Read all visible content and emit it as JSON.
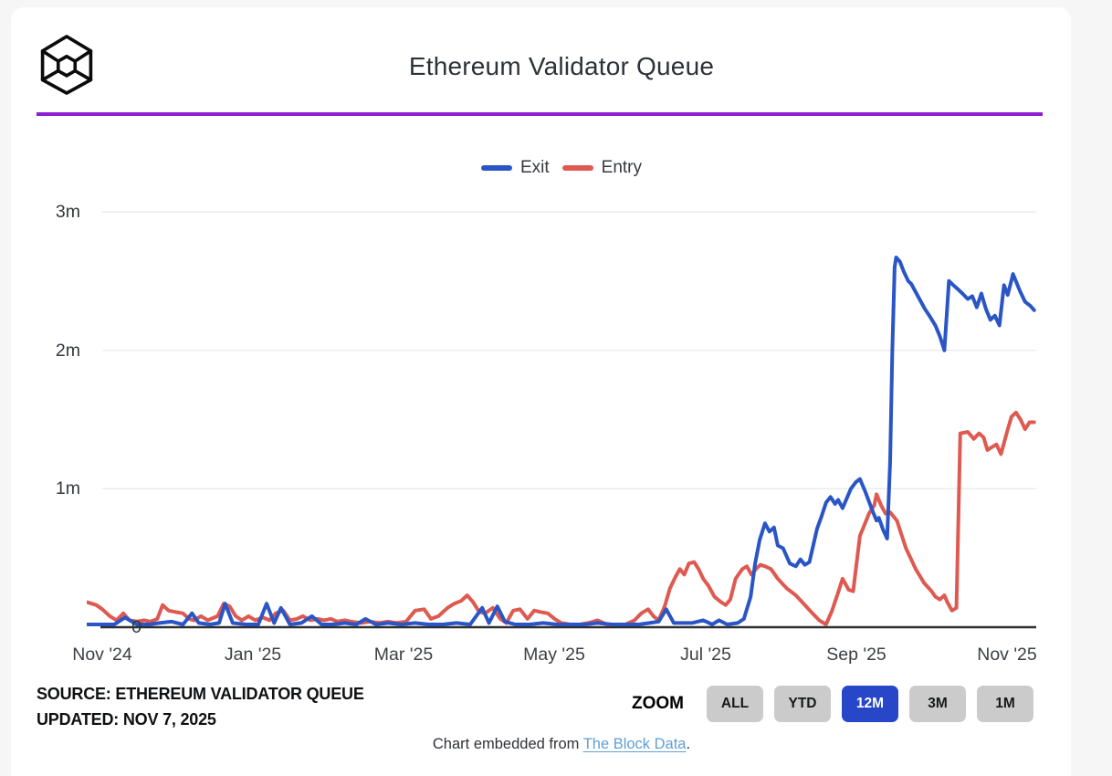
{
  "page": {
    "background": "#f6f6f7",
    "card_background": "#ffffff",
    "divider_color": "#8b1fd1"
  },
  "header": {
    "title": "Ethereum Validator Queue",
    "logo": "the-block-cube-logo"
  },
  "legend": [
    {
      "label": "Exit",
      "color": "#2a55c5"
    },
    {
      "label": "Entry",
      "color": "#de5a51"
    }
  ],
  "chart_data": {
    "type": "line",
    "title": "Ethereum Validator Queue",
    "x_unit": "months since Nov 1, 2024 (range shown: 12M, Nov '24 - Nov 7 '25)",
    "y_unit": "queue size (m = millions)",
    "ylim": [
      0,
      3.1
    ],
    "grid": "horizontal",
    "legend_position": "top-center",
    "x_ticks": [
      {
        "m": 0,
        "label": "Nov '24"
      },
      {
        "m": 2,
        "label": "Jan '25"
      },
      {
        "m": 4,
        "label": "Mar '25"
      },
      {
        "m": 6,
        "label": "May '25"
      },
      {
        "m": 8,
        "label": "Jul '25"
      },
      {
        "m": 10,
        "label": "Sep '25"
      },
      {
        "m": 12,
        "label": "Nov '25"
      }
    ],
    "y_ticks": [
      {
        "v": 0,
        "label": "0"
      },
      {
        "v": 1,
        "label": "1m"
      },
      {
        "v": 2,
        "label": "2m"
      },
      {
        "v": 3,
        "label": "3m"
      }
    ],
    "series": [
      {
        "name": "Exit",
        "color": "#2a55c5",
        "points": [
          [
            -0.2,
            0.02
          ],
          [
            0,
            0.02
          ],
          [
            0.16,
            0.02
          ],
          [
            0.3,
            0.07
          ],
          [
            0.46,
            0.02
          ],
          [
            0.62,
            0.02
          ],
          [
            0.76,
            0.03
          ],
          [
            0.92,
            0.04
          ],
          [
            1.07,
            0.02
          ],
          [
            1.19,
            0.1
          ],
          [
            1.28,
            0.03
          ],
          [
            1.43,
            0.02
          ],
          [
            1.55,
            0.03
          ],
          [
            1.63,
            0.17
          ],
          [
            1.73,
            0.03
          ],
          [
            1.91,
            0.02
          ],
          [
            2.07,
            0.02
          ],
          [
            2.18,
            0.17
          ],
          [
            2.28,
            0.03
          ],
          [
            2.37,
            0.14
          ],
          [
            2.49,
            0.02
          ],
          [
            2.64,
            0.03
          ],
          [
            2.78,
            0.08
          ],
          [
            2.91,
            0.02
          ],
          [
            3.06,
            0.02
          ],
          [
            3.22,
            0.03
          ],
          [
            3.37,
            0.02
          ],
          [
            3.49,
            0.06
          ],
          [
            3.63,
            0.02
          ],
          [
            3.79,
            0.03
          ],
          [
            3.97,
            0.02
          ],
          [
            4.15,
            0.03
          ],
          [
            4.33,
            0.02
          ],
          [
            4.52,
            0.02
          ],
          [
            4.7,
            0.03
          ],
          [
            4.88,
            0.02
          ],
          [
            5.04,
            0.14
          ],
          [
            5.13,
            0.03
          ],
          [
            5.24,
            0.15
          ],
          [
            5.34,
            0.04
          ],
          [
            5.48,
            0.02
          ],
          [
            5.67,
            0.02
          ],
          [
            5.85,
            0.03
          ],
          [
            6.03,
            0.02
          ],
          [
            6.21,
            0.02
          ],
          [
            6.39,
            0.02
          ],
          [
            6.57,
            0.03
          ],
          [
            6.76,
            0.02
          ],
          [
            6.94,
            0.02
          ],
          [
            7.12,
            0.02
          ],
          [
            7.26,
            0.03
          ],
          [
            7.38,
            0.04
          ],
          [
            7.48,
            0.13
          ],
          [
            7.58,
            0.03
          ],
          [
            7.7,
            0.03
          ],
          [
            7.82,
            0.03
          ],
          [
            7.97,
            0.05
          ],
          [
            8.09,
            0.02
          ],
          [
            8.18,
            0.05
          ],
          [
            8.29,
            0.02
          ],
          [
            8.43,
            0.03
          ],
          [
            8.51,
            0.06
          ],
          [
            8.6,
            0.22
          ],
          [
            8.66,
            0.46
          ],
          [
            8.72,
            0.63
          ],
          [
            8.79,
            0.75
          ],
          [
            8.85,
            0.69
          ],
          [
            8.91,
            0.72
          ],
          [
            8.96,
            0.59
          ],
          [
            9.03,
            0.57
          ],
          [
            9.12,
            0.46
          ],
          [
            9.2,
            0.44
          ],
          [
            9.26,
            0.49
          ],
          [
            9.32,
            0.45
          ],
          [
            9.38,
            0.47
          ],
          [
            9.48,
            0.71
          ],
          [
            9.54,
            0.8
          ],
          [
            9.6,
            0.9
          ],
          [
            9.66,
            0.94
          ],
          [
            9.72,
            0.89
          ],
          [
            9.76,
            0.92
          ],
          [
            9.82,
            0.86
          ],
          [
            9.93,
            1.0
          ],
          [
            10.0,
            1.05
          ],
          [
            10.05,
            1.07
          ],
          [
            10.12,
            0.98
          ],
          [
            10.21,
            0.85
          ],
          [
            10.27,
            0.77
          ],
          [
            10.3,
            0.79
          ],
          [
            10.36,
            0.7
          ],
          [
            10.41,
            0.64
          ],
          [
            10.45,
            1.2
          ],
          [
            10.48,
            2.0
          ],
          [
            10.51,
            2.6
          ],
          [
            10.53,
            2.67
          ],
          [
            10.58,
            2.64
          ],
          [
            10.63,
            2.57
          ],
          [
            10.69,
            2.5
          ],
          [
            10.73,
            2.48
          ],
          [
            10.79,
            2.42
          ],
          [
            10.85,
            2.36
          ],
          [
            10.91,
            2.3
          ],
          [
            10.97,
            2.25
          ],
          [
            11.05,
            2.18
          ],
          [
            11.11,
            2.1
          ],
          [
            11.17,
            2.0
          ],
          [
            11.23,
            2.5
          ],
          [
            11.29,
            2.47
          ],
          [
            11.35,
            2.44
          ],
          [
            11.41,
            2.41
          ],
          [
            11.48,
            2.37
          ],
          [
            11.54,
            2.39
          ],
          [
            11.6,
            2.31
          ],
          [
            11.66,
            2.41
          ],
          [
            11.72,
            2.3
          ],
          [
            11.78,
            2.22
          ],
          [
            11.84,
            2.25
          ],
          [
            11.9,
            2.18
          ],
          [
            11.96,
            2.47
          ],
          [
            12.01,
            2.4
          ],
          [
            12.08,
            2.55
          ],
          [
            12.17,
            2.43
          ],
          [
            12.24,
            2.35
          ],
          [
            12.31,
            2.32
          ],
          [
            12.36,
            2.29
          ]
        ]
      },
      {
        "name": "Entry",
        "color": "#de5a51",
        "points": [
          [
            -0.2,
            0.18
          ],
          [
            -0.08,
            0.16
          ],
          [
            0,
            0.13
          ],
          [
            0.1,
            0.08
          ],
          [
            0.19,
            0.05
          ],
          [
            0.28,
            0.1
          ],
          [
            0.36,
            0.05
          ],
          [
            0.46,
            0.04
          ],
          [
            0.56,
            0.05
          ],
          [
            0.64,
            0.04
          ],
          [
            0.73,
            0.06
          ],
          [
            0.8,
            0.16
          ],
          [
            0.88,
            0.12
          ],
          [
            0.97,
            0.11
          ],
          [
            1.07,
            0.1
          ],
          [
            1.15,
            0.06
          ],
          [
            1.22,
            0.05
          ],
          [
            1.31,
            0.08
          ],
          [
            1.4,
            0.05
          ],
          [
            1.53,
            0.08
          ],
          [
            1.61,
            0.17
          ],
          [
            1.69,
            0.15
          ],
          [
            1.77,
            0.08
          ],
          [
            1.85,
            0.05
          ],
          [
            1.94,
            0.08
          ],
          [
            2.03,
            0.05
          ],
          [
            2.13,
            0.07
          ],
          [
            2.22,
            0.05
          ],
          [
            2.3,
            0.1
          ],
          [
            2.4,
            0.12
          ],
          [
            2.49,
            0.05
          ],
          [
            2.58,
            0.06
          ],
          [
            2.66,
            0.08
          ],
          [
            2.76,
            0.05
          ],
          [
            2.86,
            0.06
          ],
          [
            2.94,
            0.05
          ],
          [
            3.03,
            0.06
          ],
          [
            3.12,
            0.04
          ],
          [
            3.22,
            0.05
          ],
          [
            3.3,
            0.04
          ],
          [
            3.43,
            0.03
          ],
          [
            3.55,
            0.04
          ],
          [
            3.67,
            0.03
          ],
          [
            3.79,
            0.04
          ],
          [
            3.91,
            0.03
          ],
          [
            4.03,
            0.04
          ],
          [
            4.15,
            0.12
          ],
          [
            4.27,
            0.13
          ],
          [
            4.36,
            0.06
          ],
          [
            4.46,
            0.08
          ],
          [
            4.58,
            0.14
          ],
          [
            4.67,
            0.17
          ],
          [
            4.76,
            0.19
          ],
          [
            4.84,
            0.23
          ],
          [
            4.92,
            0.18
          ],
          [
            5.0,
            0.11
          ],
          [
            5.08,
            0.1
          ],
          [
            5.18,
            0.14
          ],
          [
            5.28,
            0.06
          ],
          [
            5.36,
            0.03
          ],
          [
            5.45,
            0.12
          ],
          [
            5.54,
            0.13
          ],
          [
            5.64,
            0.06
          ],
          [
            5.73,
            0.12
          ],
          [
            5.81,
            0.11
          ],
          [
            5.91,
            0.1
          ],
          [
            6.0,
            0.06
          ],
          [
            6.09,
            0.03
          ],
          [
            6.21,
            0.02
          ],
          [
            6.33,
            0.02
          ],
          [
            6.45,
            0.03
          ],
          [
            6.57,
            0.05
          ],
          [
            6.69,
            0.02
          ],
          [
            6.82,
            0.02
          ],
          [
            6.94,
            0.02
          ],
          [
            7.06,
            0.05
          ],
          [
            7.15,
            0.1
          ],
          [
            7.24,
            0.13
          ],
          [
            7.31,
            0.08
          ],
          [
            7.38,
            0.05
          ],
          [
            7.46,
            0.15
          ],
          [
            7.53,
            0.28
          ],
          [
            7.6,
            0.36
          ],
          [
            7.66,
            0.42
          ],
          [
            7.72,
            0.38
          ],
          [
            7.78,
            0.46
          ],
          [
            7.85,
            0.47
          ],
          [
            7.91,
            0.42
          ],
          [
            7.97,
            0.35
          ],
          [
            8.04,
            0.3
          ],
          [
            8.12,
            0.22
          ],
          [
            8.21,
            0.18
          ],
          [
            8.27,
            0.16
          ],
          [
            8.33,
            0.2
          ],
          [
            8.4,
            0.35
          ],
          [
            8.49,
            0.42
          ],
          [
            8.55,
            0.44
          ],
          [
            8.61,
            0.38
          ],
          [
            8.67,
            0.42
          ],
          [
            8.73,
            0.45
          ],
          [
            8.79,
            0.44
          ],
          [
            8.87,
            0.42
          ],
          [
            8.96,
            0.35
          ],
          [
            9.08,
            0.28
          ],
          [
            9.2,
            0.23
          ],
          [
            9.32,
            0.16
          ],
          [
            9.42,
            0.1
          ],
          [
            9.51,
            0.05
          ],
          [
            9.6,
            0.02
          ],
          [
            9.68,
            0.12
          ],
          [
            9.76,
            0.25
          ],
          [
            9.82,
            0.35
          ],
          [
            9.9,
            0.27
          ],
          [
            9.96,
            0.26
          ],
          [
            10.05,
            0.66
          ],
          [
            10.11,
            0.74
          ],
          [
            10.17,
            0.82
          ],
          [
            10.24,
            0.88
          ],
          [
            10.27,
            0.96
          ],
          [
            10.33,
            0.88
          ],
          [
            10.39,
            0.82
          ],
          [
            10.45,
            0.83
          ],
          [
            10.54,
            0.77
          ],
          [
            10.66,
            0.57
          ],
          [
            10.79,
            0.42
          ],
          [
            10.9,
            0.32
          ],
          [
            11.0,
            0.26
          ],
          [
            11.05,
            0.22
          ],
          [
            11.11,
            0.2
          ],
          [
            11.17,
            0.23
          ],
          [
            11.21,
            0.18
          ],
          [
            11.27,
            0.12
          ],
          [
            11.33,
            0.14
          ],
          [
            11.38,
            1.4
          ],
          [
            11.48,
            1.41
          ],
          [
            11.56,
            1.36
          ],
          [
            11.63,
            1.4
          ],
          [
            11.69,
            1.37
          ],
          [
            11.74,
            1.28
          ],
          [
            11.8,
            1.3
          ],
          [
            11.86,
            1.32
          ],
          [
            11.92,
            1.25
          ],
          [
            12.0,
            1.41
          ],
          [
            12.06,
            1.52
          ],
          [
            12.12,
            1.55
          ],
          [
            12.18,
            1.5
          ],
          [
            12.24,
            1.43
          ],
          [
            12.3,
            1.48
          ],
          [
            12.36,
            1.48
          ]
        ]
      }
    ]
  },
  "footer": {
    "source_line1": "SOURCE: ETHEREUM VALIDATOR QUEUE",
    "source_line2": "UPDATED: NOV 7, 2025",
    "zoom_label": "ZOOM",
    "zoom_buttons": [
      {
        "label": "ALL",
        "active": false
      },
      {
        "label": "YTD",
        "active": false
      },
      {
        "label": "12M",
        "active": true
      },
      {
        "label": "3M",
        "active": false
      },
      {
        "label": "1M",
        "active": false
      }
    ],
    "embed_text": "Chart embedded from ",
    "embed_link": "The Block Data",
    "embed_suffix": "."
  }
}
